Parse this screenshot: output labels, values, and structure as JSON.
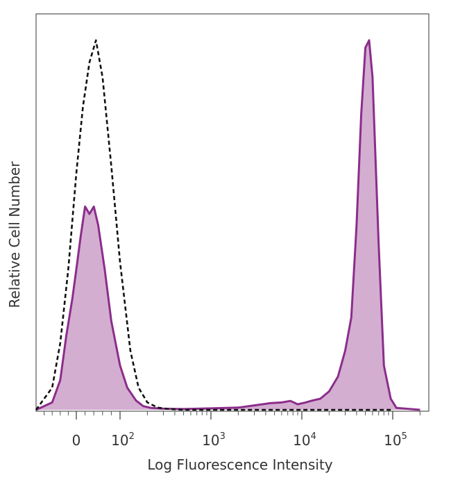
{
  "chart_data": {
    "type": "area",
    "xlabel": "Log Fluorescence Intensity",
    "ylabel": "Relative Cell Number",
    "x_scale": "biexponential",
    "ylim": [
      0,
      1
    ],
    "grid": false,
    "ticks": [
      {
        "value": 0,
        "base": "0",
        "exp": ""
      },
      {
        "value": 100,
        "base": "10",
        "exp": "2"
      },
      {
        "value": 1000,
        "base": "10",
        "exp": "3"
      },
      {
        "value": 10000,
        "base": "10",
        "exp": "4"
      },
      {
        "value": 100000,
        "base": "10",
        "exp": "5"
      }
    ],
    "colors": {
      "stained": "#8b2d8b",
      "stained_fill": "#d4aed0",
      "control": "#111111"
    },
    "series": [
      {
        "style": "dashed-outline",
        "x": [
          -100,
          -60,
          -40,
          -20,
          0,
          15,
          30,
          45,
          60,
          80,
          100,
          130,
          160,
          200,
          260,
          350,
          500,
          1000,
          100000
        ],
        "y": [
          0,
          0.06,
          0.18,
          0.38,
          0.64,
          0.82,
          0.94,
          1.0,
          0.9,
          0.66,
          0.4,
          0.16,
          0.06,
          0.02,
          0.006,
          0.002,
          0,
          0,
          0
        ]
      },
      {
        "style": "filled",
        "x": [
          -100,
          -60,
          -40,
          -25,
          -10,
          0,
          10,
          20,
          30,
          40,
          50,
          65,
          80,
          100,
          120,
          150,
          180,
          220,
          300,
          500,
          1000,
          2000,
          3000,
          4500,
          6000,
          7500,
          9000,
          11000,
          13000,
          16000,
          20000,
          25000,
          30000,
          35000,
          40000,
          45000,
          50000,
          55000,
          60000,
          70000,
          80000,
          95000,
          110000,
          200000
        ],
        "y": [
          0,
          0.02,
          0.08,
          0.2,
          0.3,
          0.38,
          0.47,
          0.55,
          0.53,
          0.55,
          0.5,
          0.38,
          0.24,
          0.12,
          0.06,
          0.025,
          0.01,
          0.005,
          0.003,
          0.002,
          0.004,
          0.006,
          0.012,
          0.018,
          0.02,
          0.024,
          0.015,
          0.02,
          0.025,
          0.03,
          0.05,
          0.09,
          0.16,
          0.25,
          0.5,
          0.8,
          0.98,
          1.0,
          0.9,
          0.45,
          0.12,
          0.03,
          0.005,
          0
        ]
      }
    ]
  }
}
